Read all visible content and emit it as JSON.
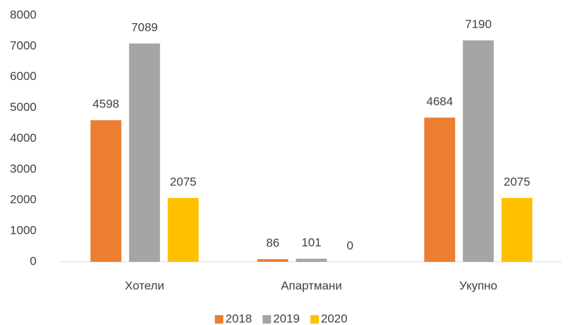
{
  "chart_data": {
    "type": "bar",
    "categories": [
      "Хотели",
      "Апартмани",
      "Укупно"
    ],
    "series": [
      {
        "name": "2018",
        "color": "#ED7D31",
        "values": [
          4598,
          86,
          4684
        ]
      },
      {
        "name": "2019",
        "color": "#A5A5A5",
        "values": [
          7089,
          101,
          7190
        ]
      },
      {
        "name": "2020",
        "color": "#FFC000",
        "values": [
          2075,
          0,
          2075
        ]
      }
    ],
    "ylim": [
      0,
      8000
    ],
    "yticks": [
      0,
      1000,
      2000,
      3000,
      4000,
      5000,
      6000,
      7000,
      8000
    ],
    "grid": false,
    "legend": "bottom"
  }
}
